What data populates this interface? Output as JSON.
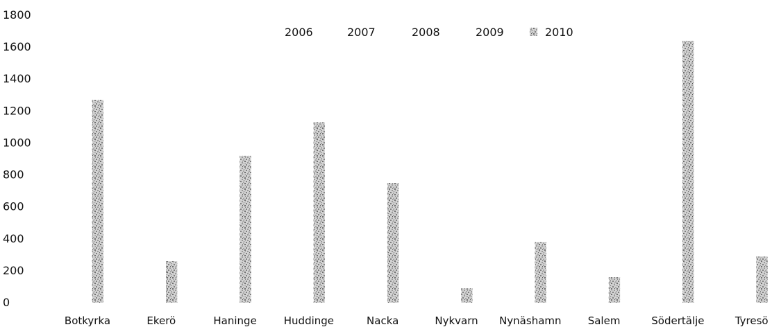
{
  "chart_data": {
    "type": "bar",
    "stacked": true,
    "categories": [
      "Botkyrka",
      "Ekerö",
      "Haninge",
      "Huddinge",
      "Nacka",
      "Nykvarn",
      "Nynäshamn",
      "Salem",
      "Södertälje",
      "Tyresö"
    ],
    "series": [
      {
        "name": "2006",
        "values": [
          0,
          0,
          0,
          0,
          0,
          0,
          0,
          0,
          0,
          0
        ]
      },
      {
        "name": "2007",
        "values": [
          0,
          0,
          0,
          0,
          0,
          0,
          0,
          0,
          0,
          0
        ]
      },
      {
        "name": "2008",
        "values": [
          0,
          0,
          0,
          0,
          0,
          0,
          0,
          0,
          0,
          0
        ]
      },
      {
        "name": "2009",
        "values": [
          0,
          0,
          0,
          0,
          0,
          0,
          0,
          0,
          0,
          0
        ]
      },
      {
        "name": "2010",
        "values": [
          1270,
          260,
          920,
          1130,
          750,
          90,
          380,
          160,
          1640,
          290
        ]
      }
    ],
    "yticks": [
      0,
      200,
      400,
      600,
      800,
      1000,
      1200,
      1400,
      1600,
      1800
    ],
    "ylim": [
      0,
      1800
    ],
    "grid": false,
    "legend_position": "top-center",
    "colors": {
      "bar_fill": "#c8c8c8",
      "bar_dark": "#7a7a7a",
      "text": "#111111",
      "background": "#ffffff"
    }
  }
}
